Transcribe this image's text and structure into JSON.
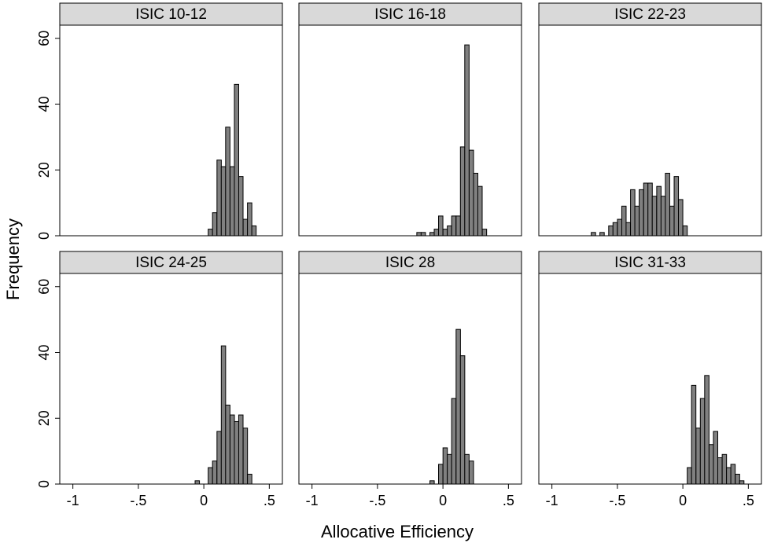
{
  "figure": {
    "xlabel": "Allocative Efficiency",
    "ylabel": "Frequency"
  },
  "colors": {
    "bar_fill": "#808080",
    "bar_stroke": "#000000",
    "strip_fill": "#d9d9d9",
    "plot_bg": "#ffffff"
  },
  "chart_data": [
    {
      "type": "bar",
      "title": "ISIC 10-12",
      "bin_width": 0.0333,
      "xlim": [
        -1.1,
        0.6
      ],
      "ylim": [
        0,
        64
      ],
      "xticks": [
        {
          "value": -1,
          "label": "-1"
        },
        {
          "value": -0.5,
          "label": "-.5"
        },
        {
          "value": 0,
          "label": "0"
        },
        {
          "value": 0.5,
          "label": ".5"
        }
      ],
      "yticks": [
        {
          "value": 0,
          "label": "0"
        },
        {
          "value": 20,
          "label": "20"
        },
        {
          "value": 40,
          "label": "40"
        },
        {
          "value": 60,
          "label": "60"
        }
      ],
      "bins": [
        {
          "x": 0.05,
          "count": 2
        },
        {
          "x": 0.083,
          "count": 7
        },
        {
          "x": 0.117,
          "count": 23
        },
        {
          "x": 0.15,
          "count": 21
        },
        {
          "x": 0.183,
          "count": 33
        },
        {
          "x": 0.217,
          "count": 21
        },
        {
          "x": 0.25,
          "count": 46
        },
        {
          "x": 0.283,
          "count": 18
        },
        {
          "x": 0.317,
          "count": 5
        },
        {
          "x": 0.35,
          "count": 10
        },
        {
          "x": 0.383,
          "count": 3
        }
      ]
    },
    {
      "type": "bar",
      "title": "ISIC 16-18",
      "bin_width": 0.0333,
      "xlim": [
        -1.1,
        0.6
      ],
      "ylim": [
        0,
        64
      ],
      "xticks": [
        {
          "value": -1,
          "label": "-1"
        },
        {
          "value": -0.5,
          "label": "-.5"
        },
        {
          "value": 0,
          "label": "0"
        },
        {
          "value": 0.5,
          "label": ".5"
        }
      ],
      "yticks": [
        {
          "value": 0,
          "label": "0"
        },
        {
          "value": 20,
          "label": "20"
        },
        {
          "value": 40,
          "label": "40"
        },
        {
          "value": 60,
          "label": "60"
        }
      ],
      "bins": [
        {
          "x": -0.183,
          "count": 1
        },
        {
          "x": -0.15,
          "count": 1
        },
        {
          "x": -0.083,
          "count": 1
        },
        {
          "x": -0.05,
          "count": 2
        },
        {
          "x": -0.017,
          "count": 6
        },
        {
          "x": 0.017,
          "count": 2
        },
        {
          "x": 0.05,
          "count": 3
        },
        {
          "x": 0.083,
          "count": 6
        },
        {
          "x": 0.117,
          "count": 6
        },
        {
          "x": 0.15,
          "count": 27
        },
        {
          "x": 0.183,
          "count": 58
        },
        {
          "x": 0.217,
          "count": 26
        },
        {
          "x": 0.25,
          "count": 19
        },
        {
          "x": 0.283,
          "count": 15
        },
        {
          "x": 0.317,
          "count": 2
        }
      ]
    },
    {
      "type": "bar",
      "title": "ISIC 22-23",
      "bin_width": 0.0333,
      "xlim": [
        -1.1,
        0.6
      ],
      "ylim": [
        0,
        64
      ],
      "xticks": [
        {
          "value": -1,
          "label": "-1"
        },
        {
          "value": -0.5,
          "label": "-.5"
        },
        {
          "value": 0,
          "label": "0"
        },
        {
          "value": 0.5,
          "label": ".5"
        }
      ],
      "yticks": [
        {
          "value": 0,
          "label": "0"
        },
        {
          "value": 20,
          "label": "20"
        },
        {
          "value": 40,
          "label": "40"
        },
        {
          "value": 60,
          "label": "60"
        }
      ],
      "bins": [
        {
          "x": -0.683,
          "count": 1
        },
        {
          "x": -0.617,
          "count": 1
        },
        {
          "x": -0.55,
          "count": 3
        },
        {
          "x": -0.517,
          "count": 4
        },
        {
          "x": -0.483,
          "count": 5
        },
        {
          "x": -0.45,
          "count": 9
        },
        {
          "x": -0.417,
          "count": 4
        },
        {
          "x": -0.383,
          "count": 14
        },
        {
          "x": -0.35,
          "count": 9
        },
        {
          "x": -0.317,
          "count": 14
        },
        {
          "x": -0.283,
          "count": 16
        },
        {
          "x": -0.25,
          "count": 16
        },
        {
          "x": -0.217,
          "count": 12
        },
        {
          "x": -0.183,
          "count": 15
        },
        {
          "x": -0.15,
          "count": 12
        },
        {
          "x": -0.117,
          "count": 19
        },
        {
          "x": -0.083,
          "count": 9
        },
        {
          "x": -0.05,
          "count": 18
        },
        {
          "x": -0.017,
          "count": 11
        },
        {
          "x": 0.017,
          "count": 3
        }
      ]
    },
    {
      "type": "bar",
      "title": "ISIC 24-25",
      "bin_width": 0.0333,
      "xlim": [
        -1.1,
        0.6
      ],
      "ylim": [
        0,
        64
      ],
      "xticks": [
        {
          "value": -1,
          "label": "-1"
        },
        {
          "value": -0.5,
          "label": "-.5"
        },
        {
          "value": 0,
          "label": "0"
        },
        {
          "value": 0.5,
          "label": ".5"
        }
      ],
      "yticks": [
        {
          "value": 0,
          "label": "0"
        },
        {
          "value": 20,
          "label": "20"
        },
        {
          "value": 40,
          "label": "40"
        },
        {
          "value": 60,
          "label": "60"
        }
      ],
      "bins": [
        {
          "x": -0.05,
          "count": 1
        },
        {
          "x": 0.05,
          "count": 5
        },
        {
          "x": 0.083,
          "count": 7
        },
        {
          "x": 0.117,
          "count": 16
        },
        {
          "x": 0.15,
          "count": 42
        },
        {
          "x": 0.183,
          "count": 24
        },
        {
          "x": 0.217,
          "count": 21
        },
        {
          "x": 0.25,
          "count": 19
        },
        {
          "x": 0.283,
          "count": 21
        },
        {
          "x": 0.317,
          "count": 17
        },
        {
          "x": 0.35,
          "count": 3
        }
      ]
    },
    {
      "type": "bar",
      "title": "ISIC 28",
      "bin_width": 0.0333,
      "xlim": [
        -1.1,
        0.6
      ],
      "ylim": [
        0,
        64
      ],
      "xticks": [
        {
          "value": -1,
          "label": "-1"
        },
        {
          "value": -0.5,
          "label": "-.5"
        },
        {
          "value": 0,
          "label": "0"
        },
        {
          "value": 0.5,
          "label": ".5"
        }
      ],
      "yticks": [
        {
          "value": 0,
          "label": "0"
        },
        {
          "value": 20,
          "label": "20"
        },
        {
          "value": 40,
          "label": "40"
        },
        {
          "value": 60,
          "label": "60"
        }
      ],
      "bins": [
        {
          "x": -0.083,
          "count": 1
        },
        {
          "x": -0.017,
          "count": 6
        },
        {
          "x": 0.017,
          "count": 11
        },
        {
          "x": 0.05,
          "count": 9
        },
        {
          "x": 0.083,
          "count": 26
        },
        {
          "x": 0.117,
          "count": 47
        },
        {
          "x": 0.15,
          "count": 39
        },
        {
          "x": 0.183,
          "count": 9
        },
        {
          "x": 0.217,
          "count": 7
        }
      ]
    },
    {
      "type": "bar",
      "title": "ISIC 31-33",
      "bin_width": 0.0333,
      "xlim": [
        -1.1,
        0.6
      ],
      "ylim": [
        0,
        64
      ],
      "xticks": [
        {
          "value": -1,
          "label": "-1"
        },
        {
          "value": -0.5,
          "label": "-.5"
        },
        {
          "value": 0,
          "label": "0"
        },
        {
          "value": 0.5,
          "label": ".5"
        }
      ],
      "yticks": [
        {
          "value": 0,
          "label": "0"
        },
        {
          "value": 20,
          "label": "20"
        },
        {
          "value": 40,
          "label": "40"
        },
        {
          "value": 60,
          "label": "60"
        }
      ],
      "bins": [
        {
          "x": 0.05,
          "count": 5
        },
        {
          "x": 0.083,
          "count": 30
        },
        {
          "x": 0.117,
          "count": 17
        },
        {
          "x": 0.15,
          "count": 26
        },
        {
          "x": 0.183,
          "count": 33
        },
        {
          "x": 0.217,
          "count": 12
        },
        {
          "x": 0.25,
          "count": 16
        },
        {
          "x": 0.283,
          "count": 8
        },
        {
          "x": 0.317,
          "count": 9
        },
        {
          "x": 0.35,
          "count": 5
        },
        {
          "x": 0.383,
          "count": 6
        },
        {
          "x": 0.417,
          "count": 3
        },
        {
          "x": 0.45,
          "count": 1
        }
      ]
    }
  ]
}
